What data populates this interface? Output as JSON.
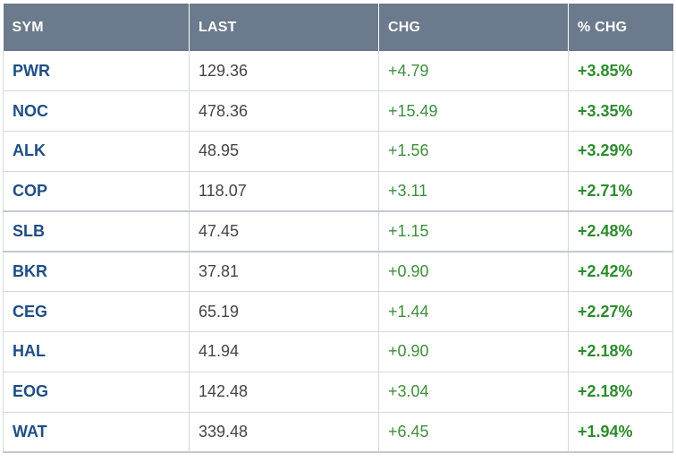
{
  "table": {
    "headers": [
      "SYM",
      "LAST",
      "CHG",
      "% CHG"
    ],
    "rows": [
      {
        "sym": "PWR",
        "last": "129.36",
        "chg": "+4.79",
        "pct": "+3.85%"
      },
      {
        "sym": "NOC",
        "last": "478.36",
        "chg": "+15.49",
        "pct": "+3.35%"
      },
      {
        "sym": "ALK",
        "last": "48.95",
        "chg": "+1.56",
        "pct": "+3.29%"
      },
      {
        "sym": "COP",
        "last": "118.07",
        "chg": "+3.11",
        "pct": "+2.71%"
      },
      {
        "sym": "SLB",
        "last": "47.45",
        "chg": "+1.15",
        "pct": "+2.48%"
      },
      {
        "sym": "BKR",
        "last": "37.81",
        "chg": "+0.90",
        "pct": "+2.42%"
      },
      {
        "sym": "CEG",
        "last": "65.19",
        "chg": "+1.44",
        "pct": "+2.27%"
      },
      {
        "sym": "HAL",
        "last": "41.94",
        "chg": "+0.90",
        "pct": "+2.18%"
      },
      {
        "sym": "EOG",
        "last": "142.48",
        "chg": "+3.04",
        "pct": "+2.18%"
      },
      {
        "sym": "WAT",
        "last": "339.48",
        "chg": "+6.45",
        "pct": "+1.94%"
      }
    ]
  },
  "colors": {
    "header_bg": "#6b7a8c",
    "symbol": "#1f4e84",
    "gain": "#2f8a2f"
  }
}
